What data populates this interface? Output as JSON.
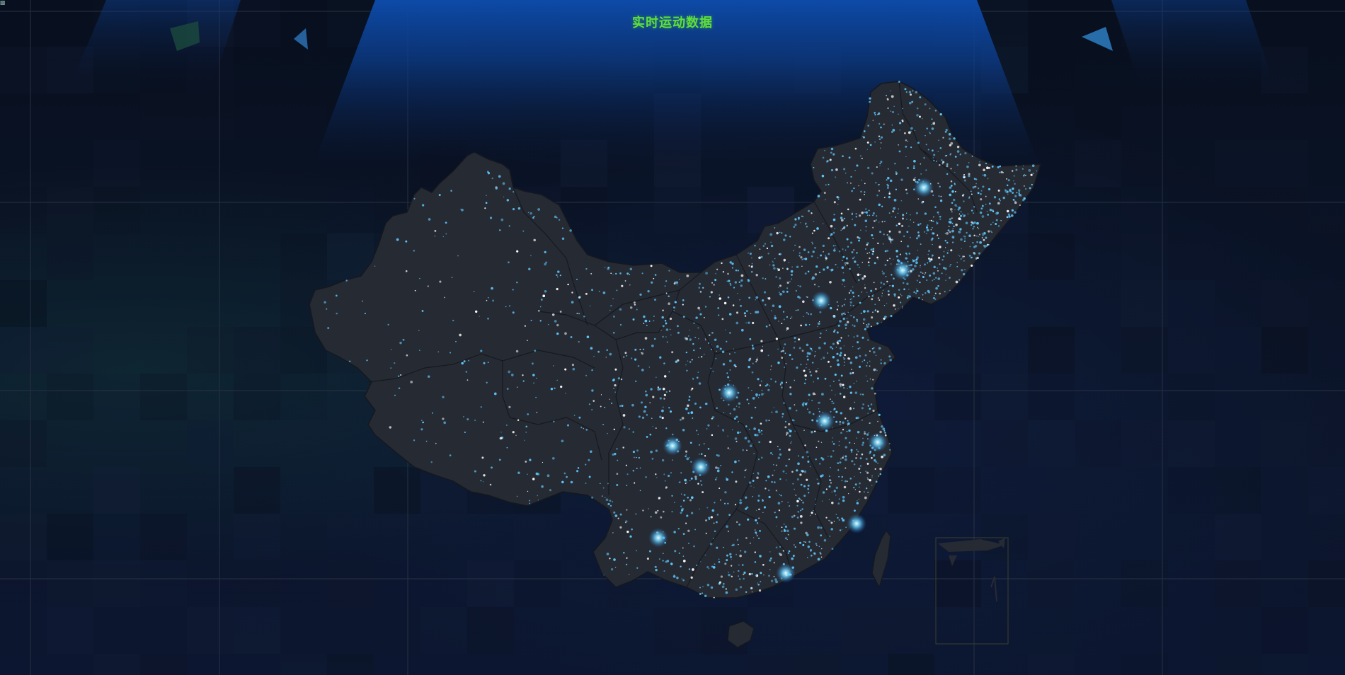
{
  "header": {
    "title": "实时运动数据"
  },
  "map": {
    "region": "china",
    "land_color": "#262a33",
    "border_color": "#14171d",
    "point_color": "#5ec8ff",
    "glow_color": "#9fe6ff",
    "background_color": "#0a0f1d",
    "title_color": "#5fe038"
  },
  "icons": {
    "corner": "broken-image-icon"
  }
}
